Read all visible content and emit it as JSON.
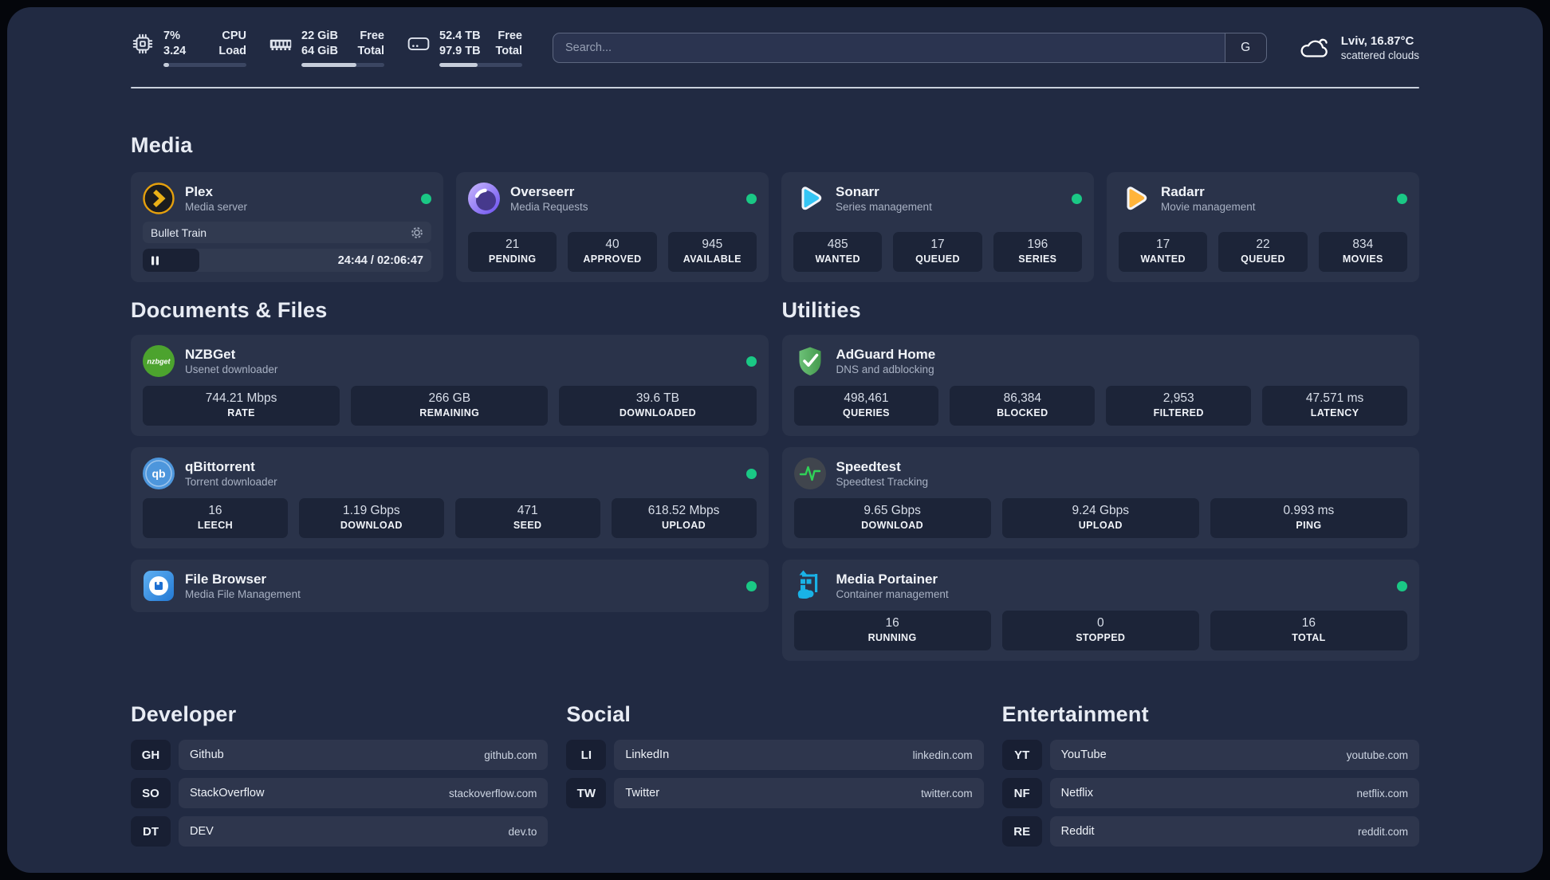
{
  "colors": {
    "online_dot": "#1ac885",
    "panel_bg": "#212a42",
    "plex_amber": "#e5a00d",
    "sonarr_blue": "#35c5f4",
    "radarr_yellow": "#ffb43a",
    "portainer_blue": "#19b2e6"
  },
  "header": {
    "cpu": {
      "icon": "cpu-icon",
      "values": [
        "7%",
        "3.24"
      ],
      "labels": [
        "CPU",
        "Load"
      ],
      "progress_pct": 7
    },
    "memory": {
      "icon": "memory-icon",
      "values": [
        "22 GiB",
        "64 GiB"
      ],
      "labels": [
        "Free",
        "Total"
      ],
      "progress_pct": 66
    },
    "storage": {
      "icon": "hard-drive-icon",
      "values": [
        "52.4 TB",
        "97.9 TB"
      ],
      "labels": [
        "Free",
        "Total"
      ],
      "progress_pct": 46
    },
    "search": {
      "placeholder": "Search...",
      "engine_button": "G"
    },
    "weather": {
      "icon": "cloud-icon",
      "location_temperature": "Lviv, 16.87°C",
      "condition": "scattered clouds"
    }
  },
  "sections": {
    "media": "Media",
    "documents": "Documents & Files",
    "utilities": "Utilities"
  },
  "apps": {
    "plex": {
      "icon": "plex-icon",
      "name": "Plex",
      "description": "Media server",
      "online": true,
      "now_playing": {
        "title": "Bullet Train",
        "state": "paused",
        "time": "24:44 / 02:06:47",
        "progress_pct": 19.5
      }
    },
    "overseerr": {
      "icon": "overseerr-icon",
      "name": "Overseerr",
      "description": "Media Requests",
      "online": true,
      "stats": [
        {
          "value": "21",
          "label": "PENDING"
        },
        {
          "value": "40",
          "label": "APPROVED"
        },
        {
          "value": "945",
          "label": "AVAILABLE"
        }
      ]
    },
    "sonarr": {
      "icon": "sonarr-icon",
      "name": "Sonarr",
      "description": "Series management",
      "online": true,
      "stats": [
        {
          "value": "485",
          "label": "WANTED"
        },
        {
          "value": "17",
          "label": "QUEUED"
        },
        {
          "value": "196",
          "label": "SERIES"
        }
      ]
    },
    "radarr": {
      "icon": "radarr-icon",
      "name": "Radarr",
      "description": "Movie management",
      "online": true,
      "stats": [
        {
          "value": "17",
          "label": "WANTED"
        },
        {
          "value": "22",
          "label": "QUEUED"
        },
        {
          "value": "834",
          "label": "MOVIES"
        }
      ]
    },
    "nzbget": {
      "icon": "nzbget-icon",
      "name": "NZBGet",
      "description": "Usenet downloader",
      "online": true,
      "stats": [
        {
          "value": "744.21 Mbps",
          "label": "RATE"
        },
        {
          "value": "266 GB",
          "label": "REMAINING"
        },
        {
          "value": "39.6 TB",
          "label": "DOWNLOADED"
        }
      ]
    },
    "qbittorrent": {
      "icon": "qbittorrent-icon",
      "name": "qBittorrent",
      "description": "Torrent downloader",
      "online": true,
      "stats": [
        {
          "value": "16",
          "label": "LEECH"
        },
        {
          "value": "1.19 Gbps",
          "label": "DOWNLOAD"
        },
        {
          "value": "471",
          "label": "SEED"
        },
        {
          "value": "618.52 Mbps",
          "label": "UPLOAD"
        }
      ]
    },
    "filebrowser": {
      "icon": "file-browser-icon",
      "name": "File Browser",
      "description": "Media File Management",
      "online": true
    },
    "adguard": {
      "icon": "adguard-icon",
      "name": "AdGuard Home",
      "description": "DNS and adblocking",
      "online": false,
      "stats": [
        {
          "value": "498,461",
          "label": "QUERIES"
        },
        {
          "value": "86,384",
          "label": "BLOCKED"
        },
        {
          "value": "2,953",
          "label": "FILTERED"
        },
        {
          "value": "47.571 ms",
          "label": "LATENCY"
        }
      ]
    },
    "speedtest": {
      "icon": "speedtest-icon",
      "name": "Speedtest",
      "description": "Speedtest Tracking",
      "online": false,
      "stats": [
        {
          "value": "9.65 Gbps",
          "label": "DOWNLOAD"
        },
        {
          "value": "9.24 Gbps",
          "label": "UPLOAD"
        },
        {
          "value": "0.993 ms",
          "label": "PING"
        }
      ]
    },
    "portainer": {
      "icon": "portainer-icon",
      "name": "Media Portainer",
      "description": "Container management",
      "online": true,
      "stats": [
        {
          "value": "16",
          "label": "RUNNING"
        },
        {
          "value": "0",
          "label": "STOPPED"
        },
        {
          "value": "16",
          "label": "TOTAL"
        }
      ]
    }
  },
  "link_sections": [
    {
      "title": "Developer",
      "links": [
        {
          "abbr": "GH",
          "name": "Github",
          "url": "github.com"
        },
        {
          "abbr": "SO",
          "name": "StackOverflow",
          "url": "stackoverflow.com"
        },
        {
          "abbr": "DT",
          "name": "DEV",
          "url": "dev.to"
        }
      ]
    },
    {
      "title": "Social",
      "links": [
        {
          "abbr": "LI",
          "name": "LinkedIn",
          "url": "linkedin.com"
        },
        {
          "abbr": "TW",
          "name": "Twitter",
          "url": "twitter.com"
        }
      ]
    },
    {
      "title": "Entertainment",
      "links": [
        {
          "abbr": "YT",
          "name": "YouTube",
          "url": "youtube.com"
        },
        {
          "abbr": "NF",
          "name": "Netflix",
          "url": "netflix.com"
        },
        {
          "abbr": "RE",
          "name": "Reddit",
          "url": "reddit.com"
        }
      ]
    }
  ]
}
